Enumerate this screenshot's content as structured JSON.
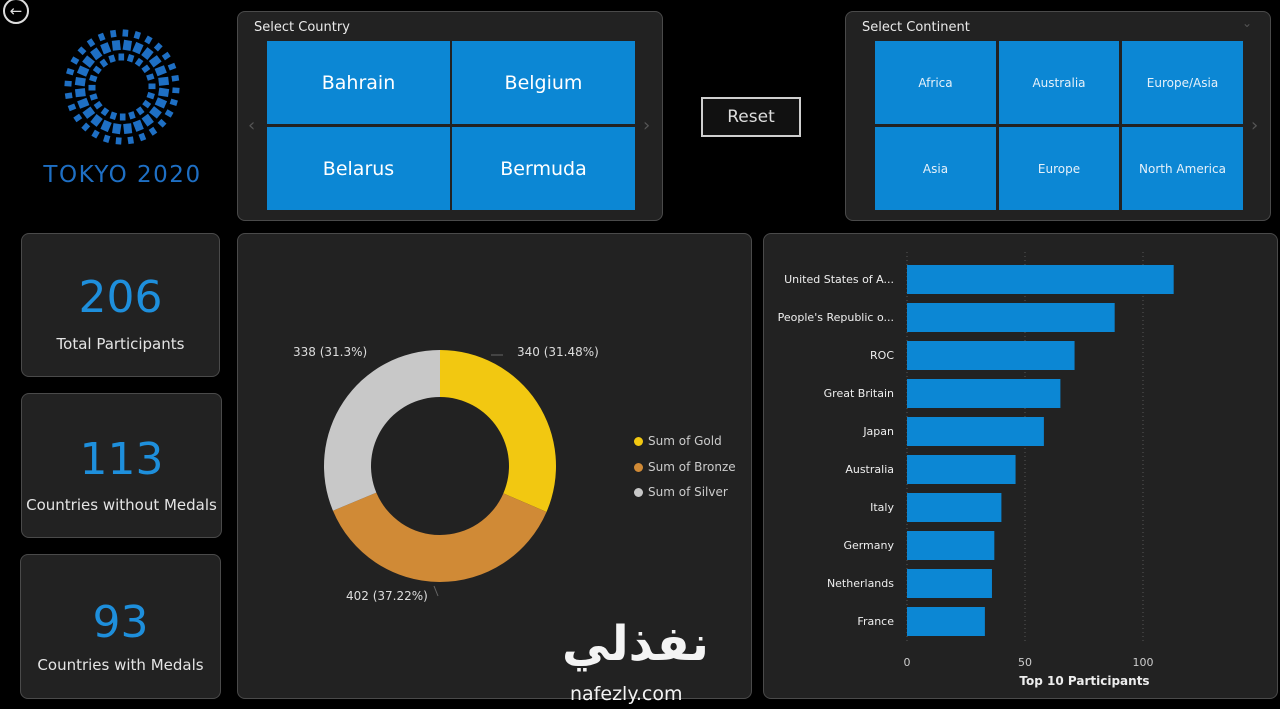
{
  "nav": {
    "back_icon": "arrow-left-circle-icon"
  },
  "logo": {
    "text": "TOKYO 2020",
    "color": "#1e6fc4"
  },
  "country_slicer": {
    "title": "Select Country",
    "items": [
      "Bahrain",
      "Belgium",
      "Belarus",
      "Bermuda"
    ]
  },
  "reset": {
    "label": "Reset"
  },
  "continent_slicer": {
    "title": "Select Continent",
    "items": [
      "Africa",
      "Australia",
      "Europe/Asia",
      "Asia",
      "Europe",
      "North America"
    ]
  },
  "kpis": [
    {
      "value": "206",
      "label": "Total Participants"
    },
    {
      "value": "113",
      "label": "Countries without Medals"
    },
    {
      "value": "93",
      "label": "Countries with Medals"
    }
  ],
  "medals_chart": {
    "type": "pie",
    "series": [
      {
        "name": "Sum of Gold",
        "value": 340,
        "label": "340 (31.48%)",
        "color": "#f2c811"
      },
      {
        "name": "Sum of Bronze",
        "value": 402,
        "label": "402 (37.22%)",
        "color": "#d08a36"
      },
      {
        "name": "Sum of Silver",
        "value": 338,
        "label": "338 (31.3%)",
        "color": "#c8c8c8"
      }
    ]
  },
  "chart_data": {
    "type": "bar",
    "orientation": "horizontal",
    "title": "Top 10 Participants",
    "categories": [
      "United States of A...",
      "People's Republic o...",
      "ROC",
      "Great Britain",
      "Japan",
      "Australia",
      "Italy",
      "Germany",
      "Netherlands",
      "France"
    ],
    "values": [
      113,
      88,
      71,
      65,
      58,
      46,
      40,
      37,
      36,
      33
    ],
    "xlim": [
      0,
      125
    ],
    "xticks": [
      "0",
      "50",
      "100"
    ],
    "grid": true,
    "bar_color": "#0c87d4"
  },
  "watermark": {
    "arabic": "نفذلي",
    "latin": "nafezly.com"
  }
}
